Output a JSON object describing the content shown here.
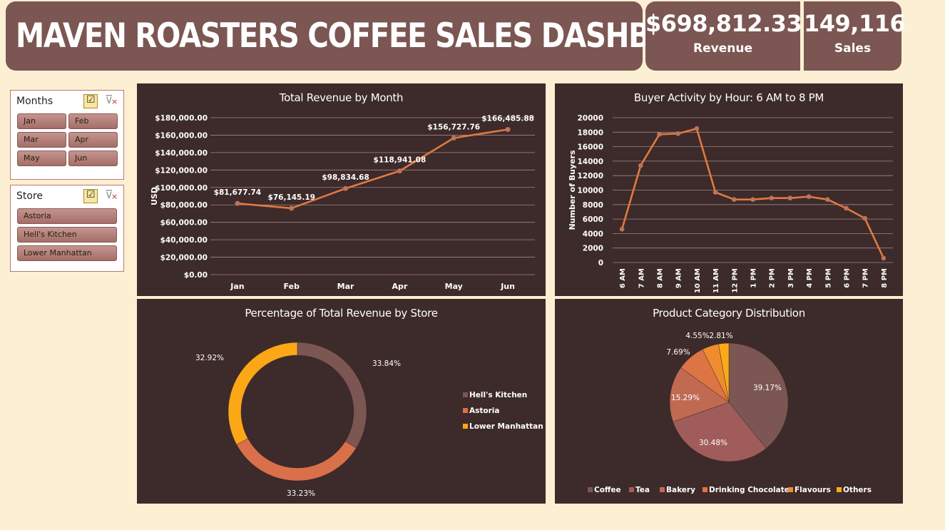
{
  "header": {
    "title": "MAVEN ROASTERS COFFEE SALES DASHBOARD"
  },
  "kpis": {
    "revenue": {
      "value": "$698,812.33",
      "label": "Revenue"
    },
    "sales": {
      "value": "149,116",
      "label": "Sales"
    }
  },
  "slicers": {
    "months": {
      "title": "Months",
      "items": [
        "Jan",
        "Feb",
        "Mar",
        "Apr",
        "May",
        "Jun"
      ]
    },
    "store": {
      "title": "Store",
      "items": [
        "Astoria",
        "Hell's Kitchen",
        "Lower Manhattan"
      ]
    }
  },
  "icons": {
    "multi_select": "multi-select-icon",
    "clear_filter": "clear-filter-icon"
  },
  "colors": {
    "background": "#fdefd3",
    "header": "#7b5652",
    "panel": "#3d2a2a",
    "line": "#e07a40",
    "hells_kitchen": "#7b5652",
    "astoria": "#d9704a",
    "lower_manhattan": "#fba716"
  },
  "chart_data": [
    {
      "type": "line",
      "title": "Total Revenue by Month",
      "xlabel": "",
      "ylabel": "USD",
      "categories": [
        "Jan",
        "Feb",
        "Mar",
        "Apr",
        "May",
        "Jun"
      ],
      "values": [
        81677.74,
        76145.19,
        98834.68,
        118941.08,
        156727.76,
        166485.88
      ],
      "data_labels": [
        "$81,677.74",
        "$76,145.19",
        "$98,834.68",
        "$118,941.08",
        "$156,727.76",
        "$166,485.88"
      ],
      "ylim": [
        0,
        180000
      ],
      "yticks": [
        "$0.00",
        "$20,000.00",
        "$40,000.00",
        "$60,000.00",
        "$80,000.00",
        "$100,000.00",
        "$120,000.00",
        "$140,000.00",
        "$160,000.00",
        "$180,000.00"
      ],
      "grid": true
    },
    {
      "type": "line",
      "title": "Buyer Activity by Hour: 6 AM to 8 PM",
      "xlabel": "",
      "ylabel": "Number of Buyers",
      "categories": [
        "6 AM",
        "7 AM",
        "8 AM",
        "9 AM",
        "10 AM",
        "11 AM",
        "12 PM",
        "1 PM",
        "2 PM",
        "3 PM",
        "4 PM",
        "5 PM",
        "6 PM",
        "7 PM",
        "8 PM"
      ],
      "values": [
        4600,
        13400,
        17700,
        17800,
        18500,
        9700,
        8700,
        8700,
        8900,
        8900,
        9100,
        8700,
        7500,
        6100,
        600
      ],
      "ylim": [
        0,
        20000
      ],
      "yticks": [
        "0",
        "2000",
        "4000",
        "6000",
        "8000",
        "10000",
        "12000",
        "14000",
        "16000",
        "18000",
        "20000"
      ],
      "grid": true
    },
    {
      "type": "pie",
      "title": "Percentage of Total Revenue by Store",
      "labels": [
        "Hell's Kitchen",
        "Astoria",
        "Lower Manhattan"
      ],
      "values": [
        33.84,
        33.23,
        32.92
      ],
      "data_labels": [
        "33.84%",
        "33.23%",
        "32.92%"
      ],
      "colors": [
        "#7b5652",
        "#d9704a",
        "#fba716"
      ],
      "legend": "right"
    },
    {
      "type": "pie",
      "title": "Product Category Distribution",
      "labels": [
        "Coffee",
        "Tea",
        "Bakery",
        "Drinking Chocolate",
        "Flavours",
        "Others"
      ],
      "values": [
        39.17,
        30.48,
        15.29,
        7.69,
        4.55,
        2.81
      ],
      "data_labels": [
        "39.17%",
        "30.48%",
        "15.29%",
        "7.69%",
        "4.55%",
        "2.81%"
      ],
      "colors": [
        "#7b5652",
        "#a05c5a",
        "#c06a52",
        "#dd7444",
        "#ee8c30",
        "#fbaa16"
      ],
      "legend": "bottom"
    }
  ]
}
